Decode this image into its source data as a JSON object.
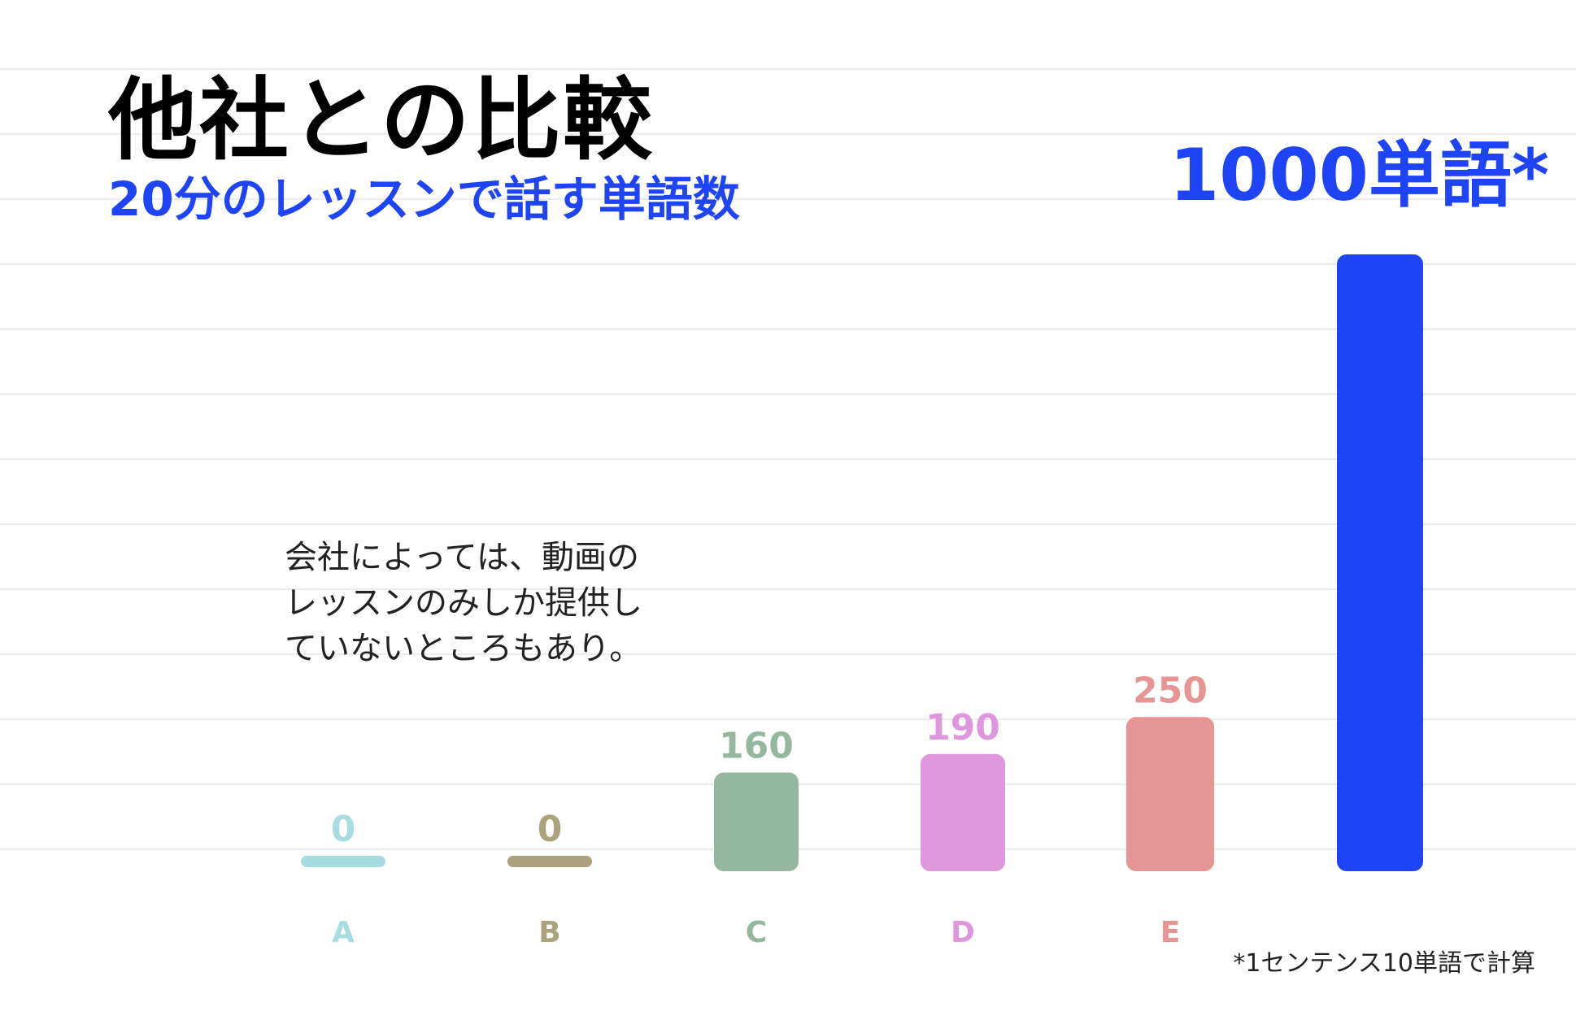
{
  "chart_data": {
    "type": "bar",
    "title": "他社との比較",
    "subtitle": "20分のレッスンで話す単語数",
    "categories": [
      "A",
      "B",
      "C",
      "D",
      "E",
      ""
    ],
    "values": [
      0,
      0,
      160,
      190,
      250,
      1000
    ],
    "value_labels": [
      "0",
      "0",
      "160",
      "190",
      "250",
      "1000単語*"
    ],
    "colors": [
      "#a8dce0",
      "#aba27e",
      "#95b79f",
      "#de97dc",
      "#e79494",
      "#1f44f5"
    ],
    "grid": true,
    "legend": "none",
    "annotation": [
      "会社によっては、動画の",
      "レッスンのみしか提供し",
      "ていないところもあり。"
    ],
    "footnote": "*1センテンス10単語で計算"
  }
}
